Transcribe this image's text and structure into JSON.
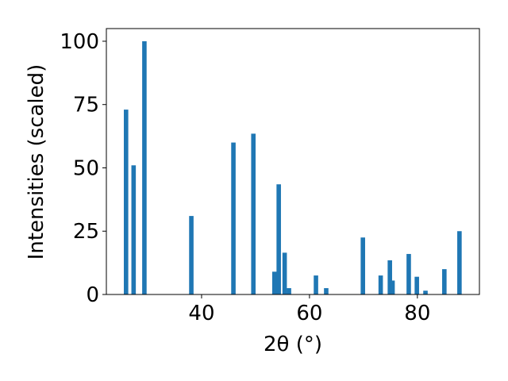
{
  "chart_data": {
    "type": "bar",
    "xlabel": "2θ (°)",
    "ylabel": "Intensities (scaled)",
    "x": [
      26.0,
      27.4,
      29.4,
      38.1,
      45.9,
      49.6,
      53.5,
      54.3,
      55.4,
      56.2,
      61.2,
      63.1,
      69.9,
      73.2,
      74.9,
      75.4,
      78.4,
      79.9,
      81.5,
      85.0,
      87.8
    ],
    "values": [
      73,
      51,
      100,
      31,
      60,
      63.5,
      9,
      43.5,
      16.5,
      2.5,
      7.5,
      2.5,
      22.5,
      7.5,
      13.5,
      5.5,
      16,
      7,
      1.5,
      10,
      25
    ],
    "color": "#1f77b4",
    "xlim": [
      22.35,
      91.5
    ],
    "ylim": [
      0,
      105
    ],
    "xticks": [
      40,
      60,
      80
    ],
    "yticks": [
      0,
      25,
      50,
      75,
      100
    ]
  }
}
